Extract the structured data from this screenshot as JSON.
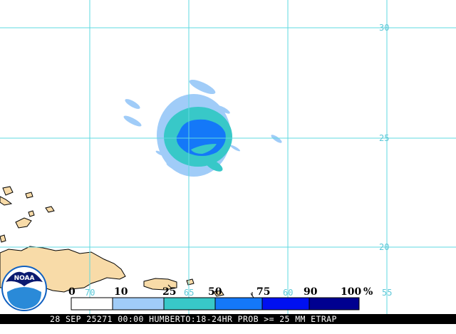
{
  "map": {
    "latitude_labels": [
      "30",
      "25",
      "20"
    ],
    "longitude_labels": [
      "70",
      "65",
      "60",
      "55"
    ],
    "colors": {
      "background": "#ffffff",
      "land": "#f8dba8",
      "land_outline": "#000000",
      "grid": "#5fd8e0",
      "grid_label": "#5fc8d8"
    }
  },
  "probability_scale": {
    "unit": "%",
    "thresholds": [
      "0",
      "10",
      "25",
      "50",
      "75",
      "90",
      "100"
    ],
    "bins": [
      {
        "range": [
          0,
          10
        ],
        "color": "#ffffff"
      },
      {
        "range": [
          10,
          25
        ],
        "color": "#a0ccf8"
      },
      {
        "range": [
          25,
          50
        ],
        "color": "#38c8c8"
      },
      {
        "range": [
          50,
          75
        ],
        "color": "#1478f8"
      },
      {
        "range": [
          75,
          90
        ],
        "color": "#0010f0"
      },
      {
        "range": [
          90,
          100
        ],
        "color": "#000090"
      }
    ]
  },
  "logo": {
    "text": "NOAA"
  },
  "status_bar": {
    "text": "28 SEP 25271 00:00 HUMBERTO:18-24HR PROB >= 25 MM ETRAP"
  }
}
